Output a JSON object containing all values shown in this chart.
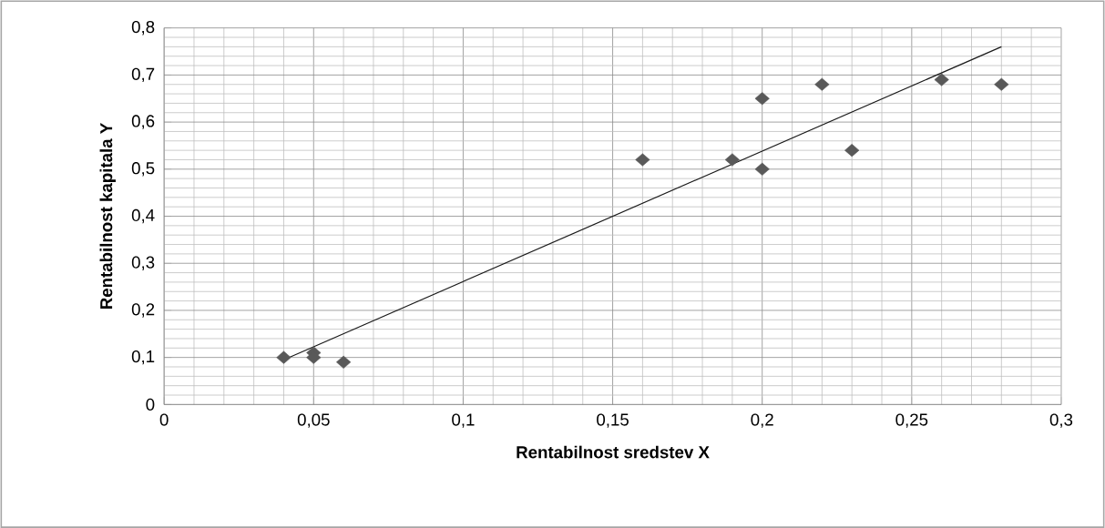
{
  "chart_data": {
    "type": "scatter",
    "xlabel": "Rentabilnost sredstev X",
    "ylabel": "Rentabilnost kapitala Y",
    "series": [
      {
        "color": "#595959",
        "marker": "diamond",
        "x": [
          0.04,
          0.05,
          0.05,
          0.06,
          0.16,
          0.19,
          0.2,
          0.2,
          0.22,
          0.23,
          0.26,
          0.28
        ],
        "values": [
          0.1,
          0.11,
          0.1,
          0.09,
          0.52,
          0.52,
          0.65,
          0.5,
          0.68,
          0.54,
          0.69,
          0.68
        ]
      },
      {
        "type": "line",
        "color": "#1a1a1a",
        "marker": "none",
        "line_style": "solid",
        "x": [
          0.04,
          0.28
        ],
        "values": [
          0.095,
          0.76
        ]
      }
    ],
    "xlim": [
      0,
      0.3
    ],
    "ylim": [
      0,
      0.8
    ],
    "xticks": [
      0,
      {
        "value": 0.05,
        "label": "0,05"
      },
      {
        "value": 0.1,
        "label": "0,1"
      },
      {
        "value": 0.15,
        "label": "0,15"
      },
      {
        "value": 0.2,
        "label": "0,2"
      },
      {
        "value": 0.25,
        "label": "0,25"
      },
      {
        "value": 0.3,
        "label": "0,3"
      }
    ],
    "yticks": [
      0,
      {
        "value": 0.1,
        "label": "0,1"
      },
      {
        "value": 0.2,
        "label": "0,2"
      },
      {
        "value": 0.3,
        "label": "0,3"
      },
      {
        "value": 0.4,
        "label": "0,4"
      },
      {
        "value": 0.5,
        "label": "0,5"
      },
      {
        "value": 0.6,
        "label": "0,6"
      },
      {
        "value": 0.7,
        "label": "0,7"
      },
      {
        "value": 0.8,
        "label": "0,8"
      }
    ],
    "grid": true
  }
}
